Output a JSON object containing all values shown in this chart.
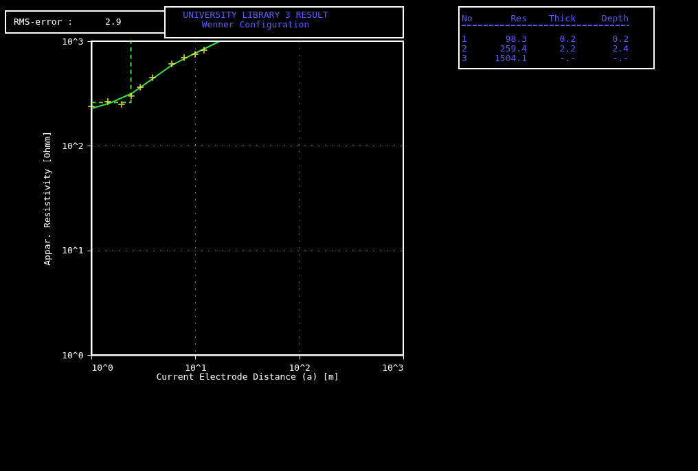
{
  "chart_data": {
    "type": "scatter",
    "title": "UNIVERSITY LIBRARY 3 RESULT",
    "subtitle": "Wenner Configuration",
    "xlabel": "Current Electrode Distance (a) [m]",
    "ylabel": "Appar. Resistivity [Ohmm]",
    "xlim": [
      1,
      1000
    ],
    "ylim": [
      1,
      1000
    ],
    "xticks": [
      {
        "value": 1,
        "label": "10^0"
      },
      {
        "value": 10,
        "label": "10^1"
      },
      {
        "value": 100,
        "label": "10^2"
      },
      {
        "value": 1000,
        "label": "10^3"
      }
    ],
    "yticks": [
      {
        "value": 1,
        "label": "10^0"
      },
      {
        "value": 10,
        "label": "10^1"
      },
      {
        "value": 100,
        "label": "10^2"
      },
      {
        "value": 1000,
        "label": "10^3"
      }
    ],
    "log": "xy",
    "grid": true,
    "series": [
      {
        "type": "line",
        "color": "#40e040",
        "line_style": "dashed",
        "marker": "none",
        "x": [
          1,
          2.4,
          2.4
        ],
        "values": [
          259.4,
          259.4,
          1000
        ]
      },
      {
        "type": "line",
        "color": "#40e040",
        "line_style": "solid",
        "marker": "none",
        "x": [
          1,
          1.51,
          2.45,
          3.87,
          5.93,
          9.8,
          17.2
        ],
        "values": [
          227,
          256,
          317,
          436,
          589,
          762,
          1000
        ]
      },
      {
        "color": "#ffff40",
        "marker": "cross",
        "x": [
          1,
          1.44,
          1.95,
          2.42,
          2.95,
          3.87,
          5.93,
          7.8,
          9.95,
          12.1
        ],
        "values": [
          238,
          264,
          249,
          299,
          363,
          449,
          607,
          695,
          750,
          822
        ]
      }
    ],
    "annotations": [
      "RMS-error :",
      "2.9",
      "No",
      "Res",
      "Thick",
      "Depth",
      "1",
      "98.3",
      "0.2",
      "0.2",
      "2",
      "259.4",
      "2.2",
      "2.4",
      "3",
      "1504.1",
      "-.-",
      "-.-"
    ]
  }
}
